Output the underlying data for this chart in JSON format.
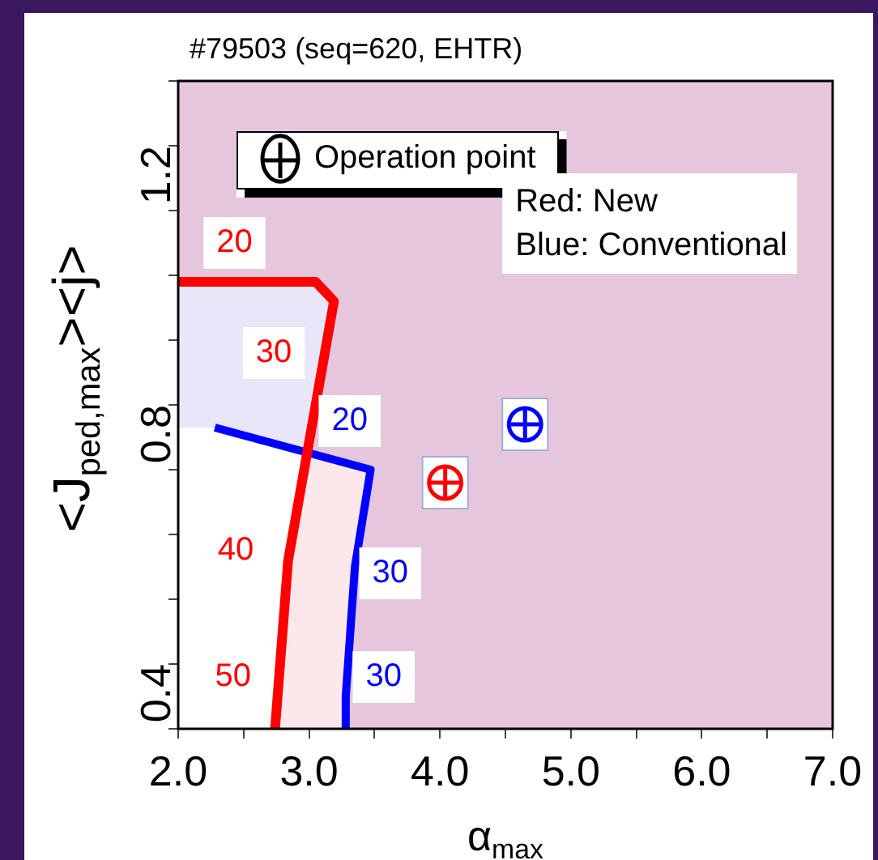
{
  "chart_data": {
    "type": "line",
    "title": "#79503 (seq=620, EHTR)",
    "xlabel": "α$_{max}$",
    "ylabel": "<J$_{ped,max}$><j>",
    "xlim": [
      2.0,
      7.0
    ],
    "ylim": [
      0.3,
      1.3
    ],
    "xticks": [
      {
        "value": 2,
        "label": "2.0"
      },
      {
        "value": 2.5,
        "label": null
      },
      {
        "value": 3,
        "label": "3.0"
      },
      {
        "value": 3.5,
        "label": null
      },
      {
        "value": 4,
        "label": "4.0"
      },
      {
        "value": 4.5,
        "label": null
      },
      {
        "value": 5,
        "label": "5.0"
      },
      {
        "value": 5.5,
        "label": null
      },
      {
        "value": 6,
        "label": "6.0"
      },
      {
        "value": 6.5,
        "label": null
      },
      {
        "value": 7,
        "label": "7.0"
      }
    ],
    "yticks": [
      {
        "value": 0.3,
        "label": null
      },
      0.4,
      {
        "value": 0.5,
        "label": null
      },
      {
        "value": 0.6,
        "label": null
      },
      {
        "value": 0.7,
        "label": null
      },
      0.8,
      {
        "value": 0.9,
        "label": null
      },
      {
        "value": 1.0,
        "label": null
      },
      {
        "value": 1.1,
        "label": null
      },
      1.2,
      {
        "value": 1.3,
        "label": null
      }
    ],
    "series": [
      {
        "type": "line",
        "color": "#ff0000",
        "x": [
          2.0,
          3.05,
          3.19,
          2.84,
          2.74
        ],
        "values": [
          0.99,
          0.99,
          0.96,
          0.56,
          0.3
        ]
      },
      {
        "type": "line",
        "color": "#0000ff",
        "x": [
          2.28,
          3.47,
          3.35,
          3.28,
          3.28
        ],
        "values": [
          0.765,
          0.7,
          0.55,
          0.35,
          0.3
        ]
      },
      {
        "type": "scatter",
        "name": "Operation point",
        "color": "#000000",
        "colors": [
          "#ff0000",
          "#0000ff"
        ],
        "marker": "circle",
        "x": [
          4.04,
          4.65
        ],
        "values": [
          0.68,
          0.77
        ]
      }
    ],
    "legend": "top left",
    "annotations": [
      "Red: New\nBlue: Conventional",
      {
        "text": "20",
        "x": 2.43,
        "y": 1.05
      },
      {
        "text": "30",
        "x": 2.73,
        "y": 0.88
      },
      {
        "text": "20",
        "x": 3.31,
        "y": 0.775
      },
      {
        "text": "40",
        "x": 2.44,
        "y": 0.575
      },
      {
        "text": "30",
        "x": 3.62,
        "y": 0.54
      },
      {
        "text": "50",
        "x": 2.42,
        "y": 0.38
      },
      {
        "text": "30",
        "x": 3.57,
        "y": 0.38
      }
    ]
  }
}
